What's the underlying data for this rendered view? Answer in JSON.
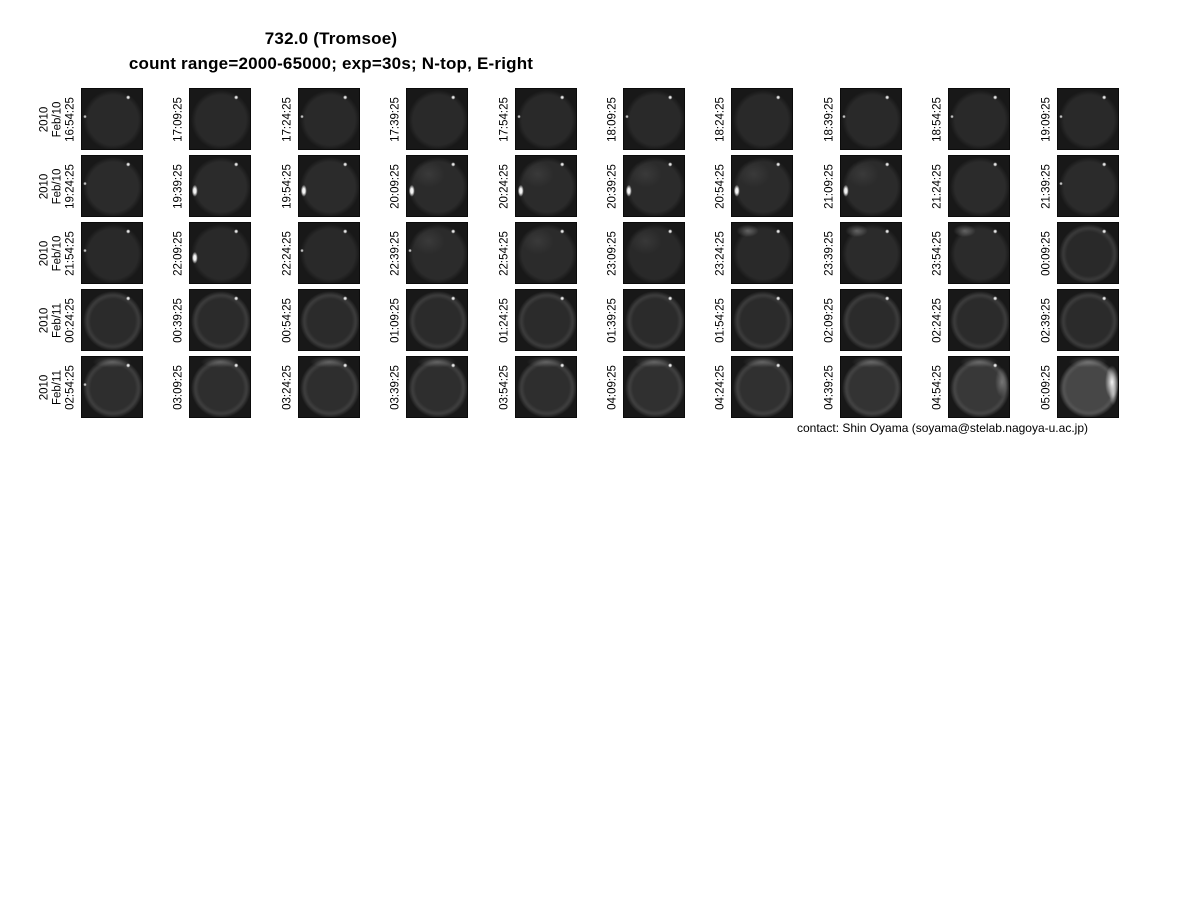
{
  "header": {
    "title": "732.0 (Tromsoe)",
    "subtitle": "count range=2000-65000; exp=30s; N-top, E-right"
  },
  "footer": {
    "contact": "contact: Shin Oyama (soyama@stelab.nagoya-u.ac.jp)"
  },
  "colors": {
    "page_background": "#ffffff",
    "frame_background": "#181818",
    "text": "#000000"
  },
  "chart_data": {
    "type": "table",
    "title": "732.0 (Tromsoe)",
    "subtitle": "count range=2000-65000; exp=30s; N-top, E-right",
    "description": "Montage of all-sky imager frames, 10 columns x 5 rows, 15-minute cadence; each cell is a dark fisheye sky image labeled with its UT timestamp",
    "rows": [
      {
        "year": "2010",
        "date": "Feb/10",
        "tiles": [
          {
            "t": "16:54:25",
            "b": 0.16,
            "f": [
              "star",
              "dotL"
            ]
          },
          {
            "t": "17:09:25",
            "b": 0.16,
            "f": [
              "star"
            ]
          },
          {
            "t": "17:24:25",
            "b": 0.16,
            "f": [
              "star",
              "dotL"
            ]
          },
          {
            "t": "17:39:25",
            "b": 0.16,
            "f": [
              "star"
            ]
          },
          {
            "t": "17:54:25",
            "b": 0.16,
            "f": [
              "star",
              "dotL"
            ]
          },
          {
            "t": "18:09:25",
            "b": 0.16,
            "f": [
              "star",
              "dotL"
            ]
          },
          {
            "t": "18:24:25",
            "b": 0.16,
            "f": [
              "star"
            ]
          },
          {
            "t": "18:39:25",
            "b": 0.16,
            "f": [
              "star",
              "dotL"
            ]
          },
          {
            "t": "18:54:25",
            "b": 0.16,
            "f": [
              "star",
              "dotL"
            ]
          },
          {
            "t": "19:09:25",
            "b": 0.16,
            "f": [
              "star",
              "dotL"
            ]
          }
        ]
      },
      {
        "year": "2010",
        "date": "Feb/10",
        "tiles": [
          {
            "t": "19:24:25",
            "b": 0.17,
            "f": [
              "star",
              "dotL"
            ]
          },
          {
            "t": "19:39:25",
            "b": 0.17,
            "f": [
              "star",
              "streakL"
            ]
          },
          {
            "t": "19:54:25",
            "b": 0.17,
            "f": [
              "star",
              "streakL"
            ]
          },
          {
            "t": "20:09:25",
            "b": 0.17,
            "f": [
              "star",
              "streakL",
              "hazeTL"
            ]
          },
          {
            "t": "20:24:25",
            "b": 0.17,
            "f": [
              "star",
              "streakL",
              "hazeTL"
            ]
          },
          {
            "t": "20:39:25",
            "b": 0.17,
            "f": [
              "star",
              "streakL",
              "hazeTL"
            ]
          },
          {
            "t": "20:54:25",
            "b": 0.17,
            "f": [
              "star",
              "streakL",
              "hazeTL"
            ]
          },
          {
            "t": "21:09:25",
            "b": 0.17,
            "f": [
              "star",
              "streakL",
              "hazeTL"
            ]
          },
          {
            "t": "21:24:25",
            "b": 0.17,
            "f": [
              "star"
            ]
          },
          {
            "t": "21:39:25",
            "b": 0.17,
            "f": [
              "star",
              "dotL"
            ]
          }
        ]
      },
      {
        "year": "2010",
        "date": "Feb/10",
        "tiles": [
          {
            "t": "21:54:25",
            "b": 0.16,
            "f": [
              "star",
              "dotL"
            ]
          },
          {
            "t": "22:09:25",
            "b": 0.16,
            "f": [
              "star",
              "streakL"
            ]
          },
          {
            "t": "22:24:25",
            "b": 0.16,
            "f": [
              "star",
              "dotL"
            ]
          },
          {
            "t": "22:39:25",
            "b": 0.17,
            "f": [
              "star",
              "dotL",
              "hazeTL"
            ]
          },
          {
            "t": "22:54:25",
            "b": 0.17,
            "f": [
              "star",
              "hazeTL"
            ]
          },
          {
            "t": "23:09:25",
            "b": 0.16,
            "f": [
              "star",
              "hazeTL"
            ]
          },
          {
            "t": "23:24:25",
            "b": 0.16,
            "f": [
              "star",
              "glowTL"
            ]
          },
          {
            "t": "23:39:25",
            "b": 0.17,
            "f": [
              "star",
              "glowTL"
            ]
          },
          {
            "t": "23:54:25",
            "b": 0.17,
            "f": [
              "star",
              "glowTL"
            ]
          },
          {
            "t": "00:09:25",
            "b": 0.16,
            "f": [
              "star",
              "rim"
            ]
          }
        ]
      },
      {
        "year": "2010",
        "date": "Feb/11",
        "tiles": [
          {
            "t": "00:24:25",
            "b": 0.17,
            "f": [
              "star",
              "rim"
            ]
          },
          {
            "t": "00:39:25",
            "b": 0.17,
            "f": [
              "star",
              "rim"
            ]
          },
          {
            "t": "00:54:25",
            "b": 0.17,
            "f": [
              "star",
              "rim"
            ]
          },
          {
            "t": "01:09:25",
            "b": 0.17,
            "f": [
              "star",
              "rim"
            ]
          },
          {
            "t": "01:24:25",
            "b": 0.17,
            "f": [
              "star",
              "rim"
            ]
          },
          {
            "t": "01:39:25",
            "b": 0.17,
            "f": [
              "star",
              "rim"
            ]
          },
          {
            "t": "01:54:25",
            "b": 0.17,
            "f": [
              "star",
              "rim"
            ]
          },
          {
            "t": "02:09:25",
            "b": 0.17,
            "f": [
              "star",
              "rim"
            ]
          },
          {
            "t": "02:24:25",
            "b": 0.17,
            "f": [
              "star",
              "rim"
            ]
          },
          {
            "t": "02:39:25",
            "b": 0.17,
            "f": [
              "star",
              "rim"
            ]
          }
        ]
      },
      {
        "year": "2010",
        "date": "Feb/11",
        "tiles": [
          {
            "t": "02:54:25",
            "b": 0.18,
            "f": [
              "star",
              "rim",
              "glowT",
              "dotL"
            ]
          },
          {
            "t": "03:09:25",
            "b": 0.18,
            "f": [
              "star",
              "rim",
              "glowT"
            ]
          },
          {
            "t": "03:24:25",
            "b": 0.18,
            "f": [
              "star",
              "rim",
              "glowT"
            ]
          },
          {
            "t": "03:39:25",
            "b": 0.18,
            "f": [
              "star",
              "rim",
              "glowT"
            ]
          },
          {
            "t": "03:54:25",
            "b": 0.18,
            "f": [
              "star",
              "rim",
              "glowT"
            ]
          },
          {
            "t": "04:09:25",
            "b": 0.19,
            "f": [
              "star",
              "rim",
              "glowT"
            ]
          },
          {
            "t": "04:24:25",
            "b": 0.19,
            "f": [
              "star",
              "rim",
              "glowT"
            ]
          },
          {
            "t": "04:39:25",
            "b": 0.2,
            "f": [
              "rim",
              "glowT"
            ]
          },
          {
            "t": "04:54:25",
            "b": 0.22,
            "f": [
              "star",
              "rim",
              "glowT",
              "glowR"
            ]
          },
          {
            "t": "05:09:25",
            "b": 0.28,
            "f": [
              "rim",
              "glowT",
              "crescentR"
            ]
          }
        ]
      }
    ],
    "layout": {
      "columns": 10,
      "rows_count": 5,
      "legend_position": "none",
      "grid": "off"
    }
  }
}
